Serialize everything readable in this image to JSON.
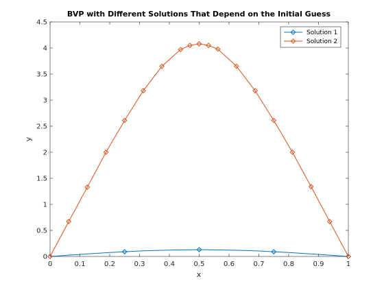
{
  "chart_data": {
    "type": "line",
    "title": "BVP with Different Solutions That Depend on the Initial Guess",
    "xlabel": "x",
    "ylabel": "y",
    "xlim": [
      0,
      1
    ],
    "ylim": [
      0,
      4.5
    ],
    "xticks": [
      "0",
      "0.1",
      "0.2",
      "0.3",
      "0.4",
      "0.5",
      "0.6",
      "0.7",
      "0.8",
      "0.9",
      "1"
    ],
    "yticks": [
      "0",
      "0.5",
      "1",
      "1.5",
      "2",
      "2.5",
      "3",
      "3.5",
      "4",
      "4.5"
    ],
    "grid": false,
    "legend_position": "top-right",
    "series": [
      {
        "name": "Solution 1",
        "color": "#0072BD",
        "marker": "diamond",
        "x": [
          0,
          0.25,
          0.5,
          0.75,
          1
        ],
        "y": [
          0,
          0.09,
          0.13,
          0.09,
          0
        ],
        "x_fine": [
          0,
          0.05,
          0.1,
          0.15,
          0.2,
          0.25,
          0.3,
          0.35,
          0.4,
          0.45,
          0.5,
          0.55,
          0.6,
          0.65,
          0.7,
          0.75,
          0.8,
          0.85,
          0.9,
          0.95,
          1
        ],
        "y_fine": [
          0,
          0.02,
          0.04,
          0.058,
          0.075,
          0.09,
          0.105,
          0.115,
          0.122,
          0.127,
          0.13,
          0.127,
          0.122,
          0.115,
          0.105,
          0.09,
          0.075,
          0.058,
          0.04,
          0.02,
          0
        ]
      },
      {
        "name": "Solution 2",
        "color": "#D95319",
        "marker": "diamond",
        "x": [
          0,
          0.0625,
          0.125,
          0.1875,
          0.25,
          0.3125,
          0.375,
          0.4375,
          0.46875,
          0.5,
          0.53125,
          0.5625,
          0.625,
          0.6875,
          0.75,
          0.8125,
          0.875,
          0.9375,
          1
        ],
        "y": [
          0,
          0.67,
          1.33,
          2.0,
          2.61,
          3.18,
          3.65,
          3.97,
          4.05,
          4.08,
          4.05,
          3.98,
          3.65,
          3.18,
          2.61,
          2.0,
          1.34,
          0.67,
          0
        ]
      }
    ]
  }
}
